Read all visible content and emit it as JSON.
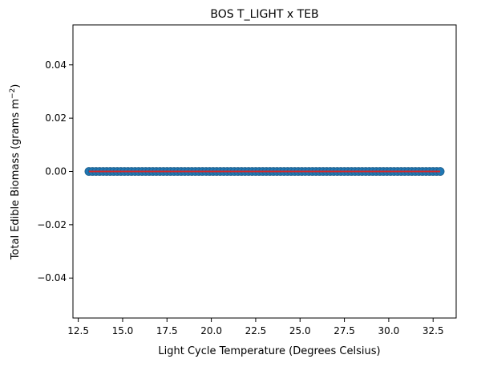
{
  "chart_data": {
    "type": "scatter",
    "title": "BOS T_LIGHT x TEB",
    "xlabel": "Light Cycle Temperature (Degrees Celsius)",
    "ylabel_main": "Total Edible Biomass (grams m",
    "ylabel_sup": "−2",
    "ylabel_close": ")",
    "xlim": [
      12.2,
      33.8
    ],
    "ylim": [
      -0.055,
      0.055
    ],
    "x_ticks": [
      12.5,
      15.0,
      17.5,
      20.0,
      22.5,
      25.0,
      27.5,
      30.0,
      32.5
    ],
    "x_tick_labels": [
      "12.5",
      "15.0",
      "17.5",
      "20.0",
      "22.5",
      "25.0",
      "27.5",
      "30.0",
      "32.5"
    ],
    "y_ticks": [
      -0.04,
      -0.02,
      0.0,
      0.02,
      0.04
    ],
    "y_tick_labels": [
      "−0.04",
      "−0.02",
      "0.00",
      "0.02",
      "0.04"
    ],
    "grid": false,
    "legend": "none",
    "scatter": {
      "x_start": 13.1,
      "x_end": 32.9,
      "count": 100,
      "y": 0.0,
      "color": "#1f77b4",
      "edgecolor": "#1f5f8b"
    },
    "fit_line": {
      "x": [
        13.1,
        32.9
      ],
      "y": [
        0.0,
        0.0
      ],
      "color": "#d62728"
    }
  }
}
